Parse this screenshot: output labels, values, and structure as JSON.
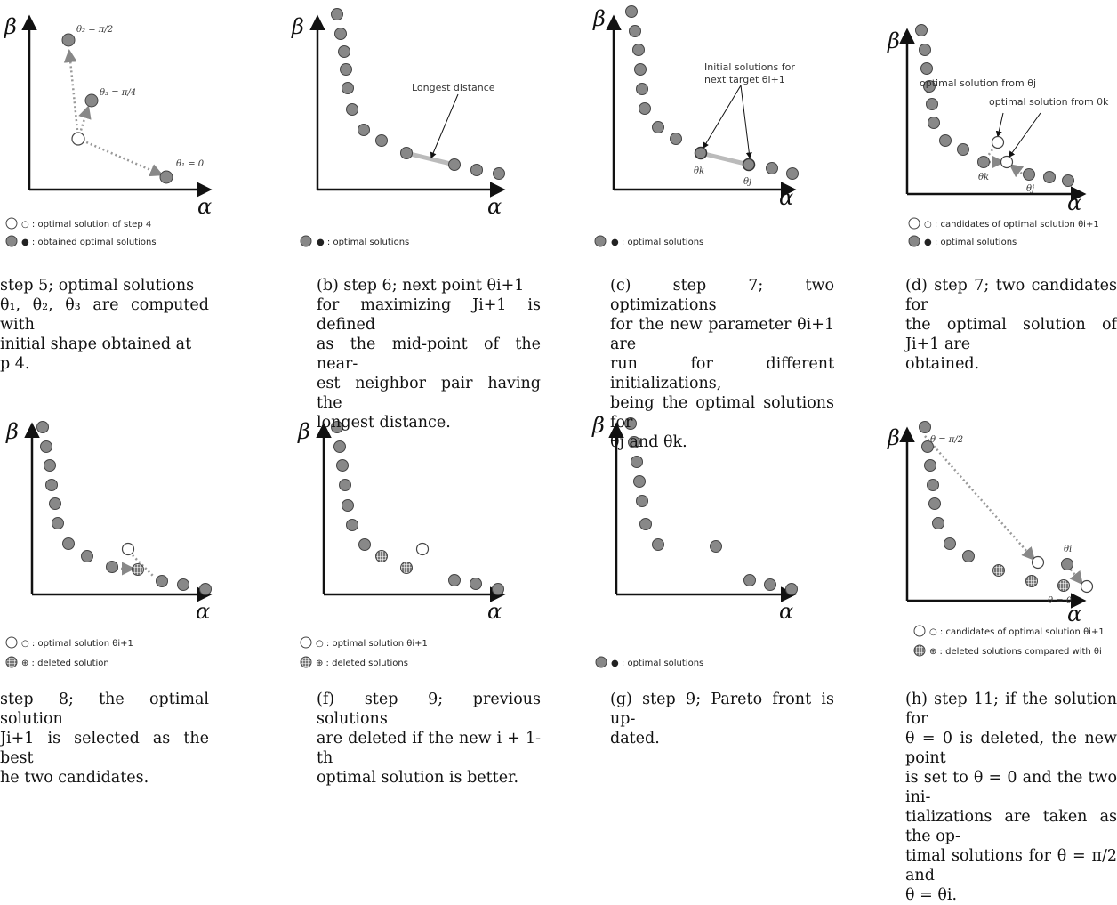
{
  "axis": {
    "x": "α",
    "y": "β"
  },
  "panels": {
    "a": {
      "labels": {
        "t2": "θ₂ = π/2",
        "t3": "θ₃ = π/4",
        "t1": "θ₁ = 0"
      },
      "legend": [
        "○ : optimal solution of step 4",
        "● : obtained optimal solutions"
      ],
      "caption": [
        "step 5; optimal solutions",
        "θ₁, θ₂, θ₃ are computed with",
        "initial shape obtained at",
        "p 4."
      ]
    },
    "b": {
      "labels": {
        "longest": "Longest distance"
      },
      "legend": [
        "● : optimal solutions"
      ],
      "caption": [
        "(b) step 6; next point θi+1",
        "for maximizing Ji+1 is defined",
        "as the mid-point of the near-",
        "est neighbor pair having the",
        "longest distance."
      ]
    },
    "c": {
      "labels": {
        "init1": "Initial solutions for",
        "init2": "next target θi+1",
        "thk": "θk",
        "thj": "θj"
      },
      "legend": [
        "● : optimal solutions"
      ],
      "caption": [
        "(c) step 7; two optimizations",
        "for the new parameter θi+1 are",
        "run for different initializations,",
        "being the optimal solutions for",
        "θj and θk."
      ]
    },
    "d": {
      "labels": {
        "from_j": "optimal solution from θj",
        "from_k": "optimal solution from θk",
        "thk": "θk",
        "thj": "θj"
      },
      "legend": [
        "○ : candidates of optimal solution θi+1",
        "● : optimal solutions"
      ],
      "caption": [
        "(d) step 7; two candidates for",
        "the optimal solution of Ji+1 are",
        "obtained."
      ]
    },
    "e": {
      "legend": [
        "○ : optimal solution θi+1",
        "⊕ : deleted  solution"
      ],
      "caption": [
        "step 8; the optimal solution",
        "Ji+1 is selected as the best",
        "he two candidates."
      ]
    },
    "f": {
      "legend": [
        "○ : optimal solution θi+1",
        "⊕ : deleted solutions"
      ],
      "caption": [
        "(f) step 9; previous solutions",
        "are deleted if the new i + 1-th",
        "optimal solution is better."
      ]
    },
    "g": {
      "legend": [
        "● : optimal solutions"
      ],
      "caption": [
        "(g) step 9; Pareto front is up-",
        "dated."
      ]
    },
    "h": {
      "labels": {
        "pi2": "θ = π/2",
        "thi": "θi",
        "zero": "θ = 0"
      },
      "legend": [
        "○ : candidates of optimal solution θi+1",
        "⊕ : deleted solutions compared with θi"
      ],
      "caption": [
        "(h) step 11; if the solution for",
        "θ = 0 is deleted, the new point",
        "is set to θ = 0 and the two ini-",
        "tializations are taken as the op-",
        "timal solutions for θ = π/2 and",
        "θ = θi."
      ]
    }
  }
}
